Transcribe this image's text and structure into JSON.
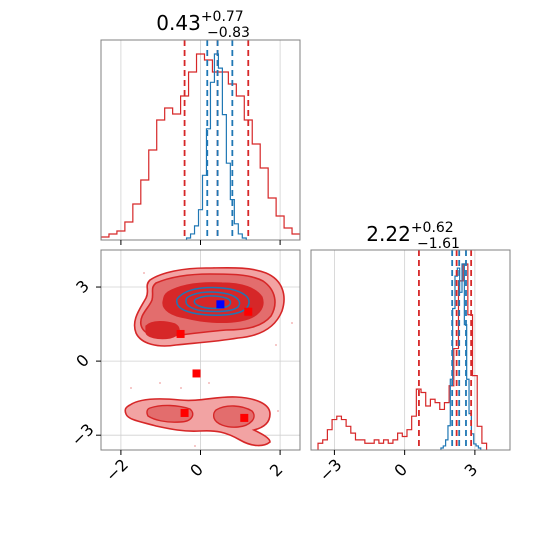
{
  "chart_data": [
    {
      "type": "histogram",
      "panel": "top-left",
      "title": {
        "value": "0.43",
        "plus": "+0.77",
        "minus": "−0.83"
      },
      "xlim": [
        -2.5,
        2.5
      ],
      "x_ticks": [
        -2,
        0,
        2
      ],
      "x_tick_labels_visible": false,
      "grid": true,
      "series": [
        {
          "color": "#d62728",
          "bins_x": [
            -2.4,
            -2.2,
            -2.0,
            -1.8,
            -1.6,
            -1.4,
            -1.2,
            -1.0,
            -0.8,
            -0.6,
            -0.4,
            -0.2,
            0.0,
            0.2,
            0.4,
            0.6,
            0.8,
            1.0,
            1.2,
            1.4,
            1.6,
            1.8,
            2.0,
            2.2,
            2.4
          ],
          "counts": [
            0.005,
            0.01,
            0.015,
            0.03,
            0.06,
            0.1,
            0.15,
            0.2,
            0.22,
            0.21,
            0.24,
            0.28,
            0.31,
            0.3,
            0.28,
            0.28,
            0.26,
            0.24,
            0.2,
            0.16,
            0.12,
            0.07,
            0.04,
            0.02,
            0.01
          ],
          "quantiles": [
            -0.4,
            0.43,
            1.2
          ]
        },
        {
          "color": "#1f77b4",
          "bins_x": [
            -0.3,
            -0.2,
            -0.1,
            0.0,
            0.1,
            0.2,
            0.3,
            0.4,
            0.5,
            0.6,
            0.7,
            0.8,
            0.9,
            1.0,
            1.1
          ],
          "counts": [
            0.01,
            0.03,
            0.07,
            0.15,
            0.32,
            0.55,
            0.78,
            0.92,
            0.85,
            0.62,
            0.38,
            0.2,
            0.08,
            0.03,
            0.01
          ],
          "quantiles": [
            0.17,
            0.43,
            0.8
          ]
        }
      ]
    },
    {
      "type": "contour",
      "panel": "bottom-left",
      "xlim": [
        -2.5,
        2.5
      ],
      "ylim": [
        -3.6,
        4.5
      ],
      "x_ticks": [
        -2,
        0,
        2
      ],
      "x_tick_labels": [
        "−2",
        "0",
        "2"
      ],
      "y_ticks": [
        -3,
        0,
        3
      ],
      "y_tick_labels": [
        "−3",
        "0",
        "3"
      ],
      "grid": true,
      "red_markers": [
        [
          -0.5,
          1.1
        ],
        [
          1.2,
          2.0
        ],
        [
          -0.1,
          -0.5
        ],
        [
          -0.4,
          -2.1
        ],
        [
          1.1,
          -2.3
        ]
      ],
      "blue_marker": [
        0.5,
        2.3
      ]
    },
    {
      "type": "histogram",
      "panel": "bottom-right",
      "title": {
        "value": "2.22",
        "plus": "+0.62",
        "minus": "−1.61"
      },
      "xlim": [
        -4.0,
        4.5
      ],
      "x_ticks": [
        -3,
        0,
        3
      ],
      "x_tick_labels": [
        "−3",
        "0",
        "3"
      ],
      "grid": true,
      "series": [
        {
          "color": "#d62728",
          "bins_x": [
            -3.6,
            -3.4,
            -3.2,
            -3.0,
            -2.8,
            -2.6,
            -2.4,
            -2.2,
            -2.0,
            -1.8,
            -1.6,
            -1.4,
            -1.2,
            -1.0,
            -0.8,
            -0.6,
            -0.4,
            -0.2,
            0.0,
            0.2,
            0.4,
            0.6,
            0.8,
            1.0,
            1.2,
            1.4,
            1.6,
            1.8,
            2.0,
            2.2,
            2.4,
            2.6,
            2.8,
            3.0,
            3.2,
            3.4
          ],
          "counts": [
            0.02,
            0.03,
            0.06,
            0.09,
            0.1,
            0.09,
            0.07,
            0.05,
            0.03,
            0.03,
            0.02,
            0.02,
            0.03,
            0.02,
            0.03,
            0.02,
            0.03,
            0.05,
            0.04,
            0.06,
            0.1,
            0.18,
            0.17,
            0.13,
            0.15,
            0.14,
            0.12,
            0.14,
            0.19,
            0.3,
            0.5,
            0.55,
            0.4,
            0.22,
            0.07,
            0.02
          ],
          "quantiles": [
            0.61,
            2.22,
            2.84
          ]
        },
        {
          "color": "#1f77b4",
          "bins_x": [
            1.6,
            1.7,
            1.8,
            1.9,
            2.0,
            2.1,
            2.2,
            2.3,
            2.4,
            2.5,
            2.6,
            2.7,
            2.8,
            2.9,
            3.0,
            3.1,
            3.2
          ],
          "counts": [
            0.01,
            0.02,
            0.05,
            0.12,
            0.35,
            0.7,
            0.86,
            0.9,
            0.78,
            0.92,
            0.62,
            0.35,
            0.18,
            0.08,
            0.03,
            0.02,
            0.01
          ],
          "quantiles": [
            2.03,
            2.33,
            2.62
          ]
        }
      ]
    }
  ]
}
